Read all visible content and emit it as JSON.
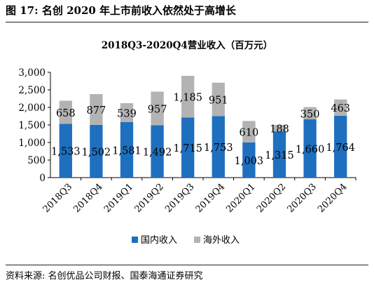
{
  "figure_title": "图 17:  名创 2020 年上市前收入依然处于高增长",
  "source_note": "资料来源:  名创优品公司财报、国泰海通证券研究",
  "colors": {
    "domestic": "#1f6fbf",
    "overseas": "#b3b3b3",
    "axis": "#000000"
  },
  "chart_data": {
    "type": "bar",
    "stacked": true,
    "title": "2018Q3-2020Q4营业收入（百万元）",
    "categories": [
      "2018Q3",
      "2018Q4",
      "2019Q1",
      "2019Q2",
      "2019Q3",
      "2019Q4",
      "2020Q1",
      "2020Q2",
      "2020Q3",
      "2020Q4"
    ],
    "series": [
      {
        "name": "国内收入",
        "values": [
          1533,
          1502,
          1581,
          1492,
          1715,
          1753,
          1003,
          1315,
          1660,
          1764
        ],
        "labels": [
          "1,533",
          "1,502",
          "1,581",
          "1,492",
          "1,715",
          "1,753",
          "1,003",
          "1,315",
          "1,660",
          "1,764"
        ]
      },
      {
        "name": "海外收入",
        "values": [
          658,
          877,
          539,
          957,
          1185,
          951,
          610,
          188,
          350,
          463
        ],
        "labels": [
          "658",
          "877",
          "539",
          "957",
          "1,185",
          "951",
          "610",
          "188",
          "350",
          "463"
        ]
      }
    ],
    "ylim": [
      0,
      3000
    ],
    "yticks": [
      0,
      500,
      1000,
      1500,
      2000,
      2500,
      3000
    ],
    "ytick_labels": [
      "0",
      "500",
      "1,000",
      "1,500",
      "2,000",
      "2,500",
      "3,000"
    ],
    "legend": "bottom"
  }
}
